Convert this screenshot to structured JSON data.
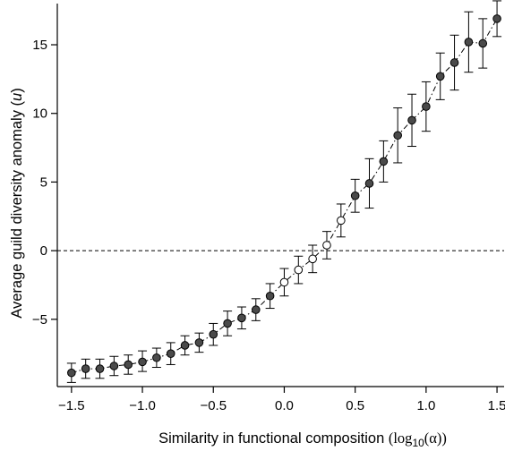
{
  "chart_data": {
    "type": "scatter",
    "title": "",
    "x_ticks": [
      "-1.5",
      "-1.0",
      "-0.5",
      "0.0",
      "0.5",
      "1.0",
      "1.5"
    ],
    "y_ticks": [
      "-5",
      "0",
      "5",
      "10",
      "15"
    ],
    "xlim": [
      -1.6,
      1.55
    ],
    "ylim": [
      -9.9,
      18
    ],
    "xlabel": {
      "text": "Similarity in functional composition ",
      "math_open": "(log",
      "math_sub": "10",
      "math_close": "(α))"
    },
    "ylabel": {
      "text": "Average guild diversity anomaly (",
      "italic": "u",
      "close": ")"
    },
    "reference_line": {
      "y": 0,
      "style": "dashed"
    },
    "grid": false,
    "legend": "none",
    "series": [
      {
        "line_style": "dash-dot",
        "points": [
          {
            "x": -1.5,
            "y": -8.9,
            "err_low": 0.7,
            "err_high": 0.7,
            "filled": true
          },
          {
            "x": -1.4,
            "y": -8.6,
            "err_low": 0.7,
            "err_high": 0.7,
            "filled": true
          },
          {
            "x": -1.3,
            "y": -8.6,
            "err_low": 0.7,
            "err_high": 0.7,
            "filled": true
          },
          {
            "x": -1.2,
            "y": -8.4,
            "err_low": 0.7,
            "err_high": 0.7,
            "filled": true
          },
          {
            "x": -1.1,
            "y": -8.3,
            "err_low": 0.7,
            "err_high": 0.7,
            "filled": true
          },
          {
            "x": -1.0,
            "y": -8.1,
            "err_low": 0.7,
            "err_high": 0.8,
            "filled": true
          },
          {
            "x": -0.9,
            "y": -7.8,
            "err_low": 0.7,
            "err_high": 0.7,
            "filled": true
          },
          {
            "x": -0.8,
            "y": -7.5,
            "err_low": 0.8,
            "err_high": 0.8,
            "filled": true
          },
          {
            "x": -0.7,
            "y": -6.9,
            "err_low": 0.7,
            "err_high": 0.7,
            "filled": true
          },
          {
            "x": -0.6,
            "y": -6.7,
            "err_low": 0.7,
            "err_high": 0.7,
            "filled": true
          },
          {
            "x": -0.5,
            "y": -6.1,
            "err_low": 0.8,
            "err_high": 0.8,
            "filled": true
          },
          {
            "x": -0.4,
            "y": -5.3,
            "err_low": 0.9,
            "err_high": 0.9,
            "filled": true
          },
          {
            "x": -0.3,
            "y": -4.9,
            "err_low": 0.8,
            "err_high": 0.8,
            "filled": true
          },
          {
            "x": -0.2,
            "y": -4.3,
            "err_low": 0.8,
            "err_high": 0.8,
            "filled": true
          },
          {
            "x": -0.1,
            "y": -3.3,
            "err_low": 0.9,
            "err_high": 0.9,
            "filled": true
          },
          {
            "x": 0.0,
            "y": -2.3,
            "err_low": 1.0,
            "err_high": 1.0,
            "filled": false
          },
          {
            "x": 0.1,
            "y": -1.4,
            "err_low": 1.0,
            "err_high": 1.0,
            "filled": false
          },
          {
            "x": 0.2,
            "y": -0.6,
            "err_low": 1.0,
            "err_high": 1.0,
            "filled": false
          },
          {
            "x": 0.3,
            "y": 0.4,
            "err_low": 1.0,
            "err_high": 1.0,
            "filled": false
          },
          {
            "x": 0.4,
            "y": 2.2,
            "err_low": 1.2,
            "err_high": 1.2,
            "filled": false
          },
          {
            "x": 0.5,
            "y": 4.0,
            "err_low": 1.2,
            "err_high": 1.2,
            "filled": true
          },
          {
            "x": 0.6,
            "y": 4.9,
            "err_low": 1.8,
            "err_high": 1.8,
            "filled": true
          },
          {
            "x": 0.7,
            "y": 6.5,
            "err_low": 1.5,
            "err_high": 1.5,
            "filled": true
          },
          {
            "x": 0.8,
            "y": 8.4,
            "err_low": 2.0,
            "err_high": 2.0,
            "filled": true
          },
          {
            "x": 0.9,
            "y": 9.5,
            "err_low": 1.9,
            "err_high": 1.9,
            "filled": true
          },
          {
            "x": 1.0,
            "y": 10.5,
            "err_low": 1.8,
            "err_high": 1.8,
            "filled": true
          },
          {
            "x": 1.1,
            "y": 12.7,
            "err_low": 1.7,
            "err_high": 1.7,
            "filled": true
          },
          {
            "x": 1.2,
            "y": 13.7,
            "err_low": 2.0,
            "err_high": 2.0,
            "filled": true
          },
          {
            "x": 1.3,
            "y": 15.2,
            "err_low": 2.2,
            "err_high": 2.2,
            "filled": true
          },
          {
            "x": 1.4,
            "y": 15.1,
            "err_low": 1.8,
            "err_high": 1.8,
            "filled": true
          },
          {
            "x": 1.5,
            "y": 16.9,
            "err_low": 1.3,
            "err_high": 1.3,
            "filled": true
          }
        ]
      }
    ],
    "colors": {
      "filled_marker": "#4a4a4a",
      "open_marker": "#ffffff",
      "marker_edge": "#000000",
      "axis": "#000000"
    }
  }
}
